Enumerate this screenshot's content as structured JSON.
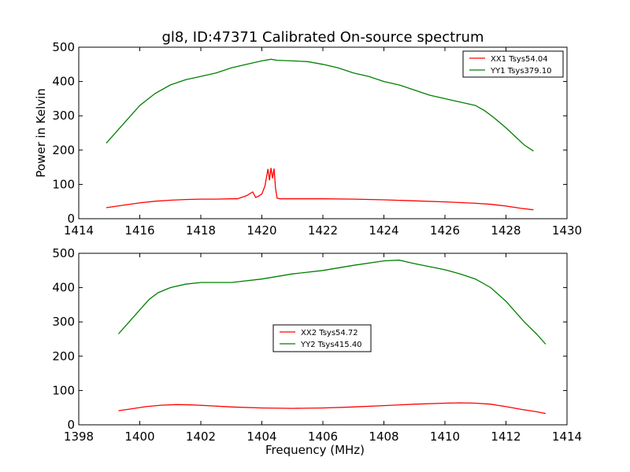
{
  "figure": {
    "title": "gl8, ID:47371 Calibrated On-source spectrum"
  },
  "chart_data": [
    {
      "type": "line",
      "title": "gl8, ID:47371 Calibrated On-source spectrum",
      "xlabel": "",
      "ylabel": "Power in Kelvin",
      "xlim": [
        1414,
        1430
      ],
      "ylim": [
        0,
        500
      ],
      "xticks": [
        1414,
        1416,
        1418,
        1420,
        1422,
        1424,
        1426,
        1428,
        1430
      ],
      "yticks": [
        0,
        100,
        200,
        300,
        400,
        500
      ],
      "grid": false,
      "legend_position": "top-right",
      "series": [
        {
          "name": "XX1 Tsys54.04",
          "color": "#ff0000",
          "x": [
            1414.9,
            1415.5,
            1416.0,
            1416.5,
            1417.0,
            1417.5,
            1418.0,
            1418.5,
            1419.0,
            1419.2,
            1419.5,
            1419.7,
            1419.8,
            1419.9,
            1420.0,
            1420.1,
            1420.2,
            1420.25,
            1420.3,
            1420.35,
            1420.4,
            1420.45,
            1420.5,
            1420.6,
            1420.7,
            1421.0,
            1421.5,
            1422.0,
            1423.0,
            1424.0,
            1425.0,
            1426.0,
            1426.5,
            1427.0,
            1427.5,
            1428.0,
            1428.5,
            1428.9
          ],
          "y": [
            32,
            40,
            46,
            51,
            54,
            56,
            57,
            57,
            58,
            58,
            67,
            78,
            62,
            66,
            72,
            95,
            145,
            112,
            148,
            118,
            146,
            88,
            60,
            58,
            58,
            58,
            58,
            58,
            57,
            55,
            52,
            49,
            47,
            45,
            42,
            37,
            30,
            26
          ]
        },
        {
          "name": "YY1 Tsys379.10",
          "color": "#008000",
          "x": [
            1414.9,
            1415.3,
            1415.7,
            1416.0,
            1416.5,
            1417.0,
            1417.5,
            1418.0,
            1418.5,
            1419.0,
            1419.5,
            1420.0,
            1420.3,
            1420.5,
            1421.0,
            1421.5,
            1422.0,
            1422.5,
            1423.0,
            1423.5,
            1424.0,
            1424.5,
            1425.0,
            1425.5,
            1426.0,
            1426.5,
            1427.0,
            1427.3,
            1427.6,
            1428.0,
            1428.3,
            1428.6,
            1428.9
          ],
          "y": [
            220,
            260,
            300,
            330,
            365,
            390,
            405,
            415,
            425,
            440,
            450,
            460,
            465,
            462,
            460,
            458,
            450,
            440,
            425,
            415,
            400,
            390,
            375,
            360,
            350,
            340,
            330,
            315,
            295,
            265,
            240,
            215,
            197
          ]
        }
      ]
    },
    {
      "type": "line",
      "title": "",
      "xlabel": "Frequency (MHz)",
      "ylabel": "",
      "xlim": [
        1398,
        1414
      ],
      "ylim": [
        0,
        500
      ],
      "xticks": [
        1398,
        1400,
        1402,
        1404,
        1406,
        1408,
        1410,
        1412,
        1414
      ],
      "yticks": [
        0,
        100,
        200,
        300,
        400,
        500
      ],
      "grid": false,
      "legend_position": "center",
      "series": [
        {
          "name": "XX2 Tsys54.72",
          "color": "#ff0000",
          "x": [
            1399.3,
            1399.7,
            1400.2,
            1400.7,
            1401.2,
            1401.7,
            1402.2,
            1403.0,
            1404.0,
            1405.0,
            1406.0,
            1407.0,
            1408.0,
            1409.0,
            1410.0,
            1410.5,
            1411.0,
            1411.5,
            1412.0,
            1412.5,
            1413.0,
            1413.3
          ],
          "y": [
            41,
            46,
            53,
            57,
            59,
            58,
            56,
            52,
            49,
            48,
            49,
            52,
            56,
            60,
            63,
            64,
            63,
            60,
            53,
            45,
            38,
            33
          ]
        },
        {
          "name": "YY2 Tsys415.40",
          "color": "#008000",
          "x": [
            1399.3,
            1399.6,
            1400.0,
            1400.3,
            1400.6,
            1401.0,
            1401.5,
            1402.0,
            1403.0,
            1404.0,
            1405.0,
            1406.0,
            1407.0,
            1408.0,
            1408.5,
            1409.0,
            1410.0,
            1410.5,
            1411.0,
            1411.5,
            1412.0,
            1412.3,
            1412.6,
            1413.0,
            1413.3
          ],
          "y": [
            265,
            295,
            335,
            365,
            385,
            400,
            410,
            415,
            415,
            425,
            440,
            450,
            465,
            478,
            480,
            470,
            452,
            440,
            425,
            400,
            360,
            330,
            300,
            265,
            235
          ]
        }
      ]
    }
  ]
}
